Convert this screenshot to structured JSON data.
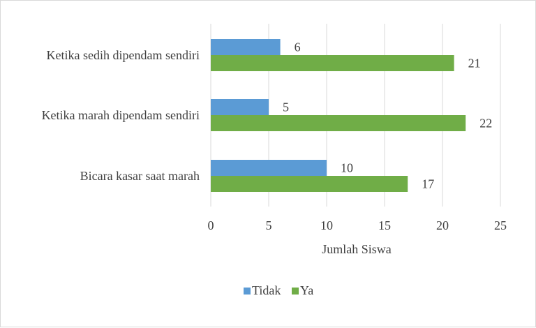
{
  "chart_data": {
    "type": "bar",
    "orientation": "horizontal",
    "categories": [
      "Ketika sedih dipendam sendiri",
      "Ketika marah dipendam sendiri",
      "Bicara kasar saat marah"
    ],
    "series": [
      {
        "name": "Tidak",
        "values": [
          6,
          5,
          10
        ],
        "color": "#5b9bd5"
      },
      {
        "name": "Ya",
        "values": [
          21,
          22,
          17
        ],
        "color": "#70ad47"
      }
    ],
    "xlabel": "Jumlah Siswa",
    "ylabel": "",
    "xlim": [
      0,
      25
    ],
    "ticks": [
      "0",
      "5",
      "10",
      "15",
      "20",
      "25"
    ],
    "grid": true,
    "legend_position": "bottom"
  }
}
